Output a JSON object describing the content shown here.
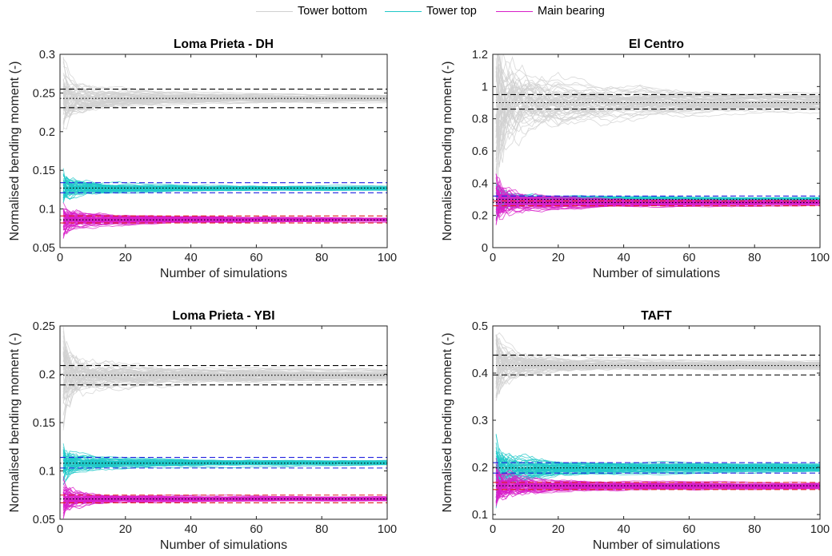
{
  "legend": {
    "items": [
      {
        "label": "Tower bottom",
        "color": "#d0d0d0"
      },
      {
        "label": "Tower top",
        "color": "#1fc8c8"
      },
      {
        "label": "Main bearing",
        "color": "#d81ec8"
      }
    ]
  },
  "chart_data": [
    {
      "type": "line",
      "title": "Loma Prieta - DH",
      "xlabel": "Number of simulations",
      "ylabel": "Normalised bending moment (-)",
      "xlim": [
        0,
        100
      ],
      "ylim": [
        0.05,
        0.3
      ],
      "xticks": [
        0,
        20,
        40,
        60,
        80,
        100
      ],
      "xtick_labels": [
        "0",
        "20",
        "40",
        "60",
        "80",
        "100"
      ],
      "yticks": [
        0.05,
        0.1,
        0.15,
        0.2,
        0.25,
        0.3
      ],
      "ytick_labels": [
        "0.05",
        "0.1",
        "0.15",
        "0.2",
        "0.25",
        "0.3"
      ],
      "series": [
        {
          "name": "Tower bottom",
          "color": "#d0d0d0",
          "mean": 0.243,
          "dash_lo": 0.231,
          "dash_hi": 0.255,
          "spread": 0.028,
          "dash_color": "#000000"
        },
        {
          "name": "Tower top",
          "color": "#1fc8c8",
          "mean": 0.127,
          "dash_lo": 0.121,
          "dash_hi": 0.134,
          "spread": 0.016,
          "dash_color": "#2020e0"
        },
        {
          "name": "Main bearing",
          "color": "#d81ec8",
          "mean": 0.086,
          "dash_lo": 0.082,
          "dash_hi": 0.091,
          "spread": 0.016,
          "dash_color": "#e02020"
        }
      ]
    },
    {
      "type": "line",
      "title": "El Centro",
      "xlabel": "Number of simulations",
      "ylabel": "Normalised bending moment (-)",
      "xlim": [
        0,
        100
      ],
      "ylim": [
        0,
        1.2
      ],
      "xticks": [
        0,
        20,
        40,
        60,
        80,
        100
      ],
      "xtick_labels": [
        "0",
        "20",
        "40",
        "60",
        "80",
        "100"
      ],
      "yticks": [
        0,
        0.2,
        0.4,
        0.6,
        0.8,
        1,
        1.2
      ],
      "ytick_labels": [
        "0",
        "0.2",
        "0.4",
        "0.6",
        "0.8",
        "1",
        "1.2"
      ],
      "series": [
        {
          "name": "Tower bottom",
          "color": "#d0d0d0",
          "mean": 0.9,
          "dash_lo": 0.86,
          "dash_hi": 0.95,
          "spread": 0.4,
          "dash_color": "#000000"
        },
        {
          "name": "Tower top",
          "color": "#1fc8c8",
          "mean": 0.3,
          "dash_lo": 0.29,
          "dash_hi": 0.32,
          "spread": 0.07,
          "dash_color": "#2020e0"
        },
        {
          "name": "Main bearing",
          "color": "#d81ec8",
          "mean": 0.28,
          "dash_lo": 0.26,
          "dash_hi": 0.29,
          "spread": 0.12,
          "dash_color": "#e02020"
        }
      ]
    },
    {
      "type": "line",
      "title": "Loma Prieta - YBI",
      "xlabel": "Number of simulations",
      "ylabel": "Normalised bending moment (-)",
      "xlim": [
        0,
        100
      ],
      "ylim": [
        0.05,
        0.25
      ],
      "xticks": [
        0,
        20,
        40,
        60,
        80,
        100
      ],
      "xtick_labels": [
        "0",
        "20",
        "40",
        "60",
        "80",
        "100"
      ],
      "yticks": [
        0.05,
        0.1,
        0.15,
        0.2,
        0.25
      ],
      "ytick_labels": [
        "0.05",
        "0.1",
        "0.15",
        "0.2",
        "0.25"
      ],
      "series": [
        {
          "name": "Tower bottom",
          "color": "#d0d0d0",
          "mean": 0.199,
          "dash_lo": 0.189,
          "dash_hi": 0.209,
          "spread": 0.035,
          "dash_color": "#000000"
        },
        {
          "name": "Tower top",
          "color": "#1fc8c8",
          "mean": 0.108,
          "dash_lo": 0.103,
          "dash_hi": 0.114,
          "spread": 0.014,
          "dash_color": "#2020e0"
        },
        {
          "name": "Main bearing",
          "color": "#d81ec8",
          "mean": 0.071,
          "dash_lo": 0.067,
          "dash_hi": 0.075,
          "spread": 0.012,
          "dash_color": "#e02020"
        }
      ]
    },
    {
      "type": "line",
      "title": "TAFT",
      "xlabel": "Number of simulations",
      "ylabel": "Normalised bending moment (-)",
      "xlim": [
        0,
        100
      ],
      "ylim": [
        0.09,
        0.5
      ],
      "xticks": [
        0,
        20,
        40,
        60,
        80,
        100
      ],
      "xtick_labels": [
        "0",
        "20",
        "40",
        "60",
        "80",
        "100"
      ],
      "yticks": [
        0.1,
        0.2,
        0.3,
        0.4,
        0.5
      ],
      "ytick_labels": [
        "0.1",
        "0.2",
        "0.3",
        "0.4",
        "0.5"
      ],
      "series": [
        {
          "name": "Tower bottom",
          "color": "#d0d0d0",
          "mean": 0.416,
          "dash_lo": 0.396,
          "dash_hi": 0.438,
          "spread": 0.05,
          "dash_color": "#000000"
        },
        {
          "name": "Tower top",
          "color": "#1fc8c8",
          "mean": 0.199,
          "dash_lo": 0.188,
          "dash_hi": 0.21,
          "spread": 0.05,
          "dash_color": "#2020e0"
        },
        {
          "name": "Main bearing",
          "color": "#d81ec8",
          "mean": 0.161,
          "dash_lo": 0.153,
          "dash_hi": 0.168,
          "spread": 0.04,
          "dash_color": "#e02020"
        }
      ]
    }
  ]
}
